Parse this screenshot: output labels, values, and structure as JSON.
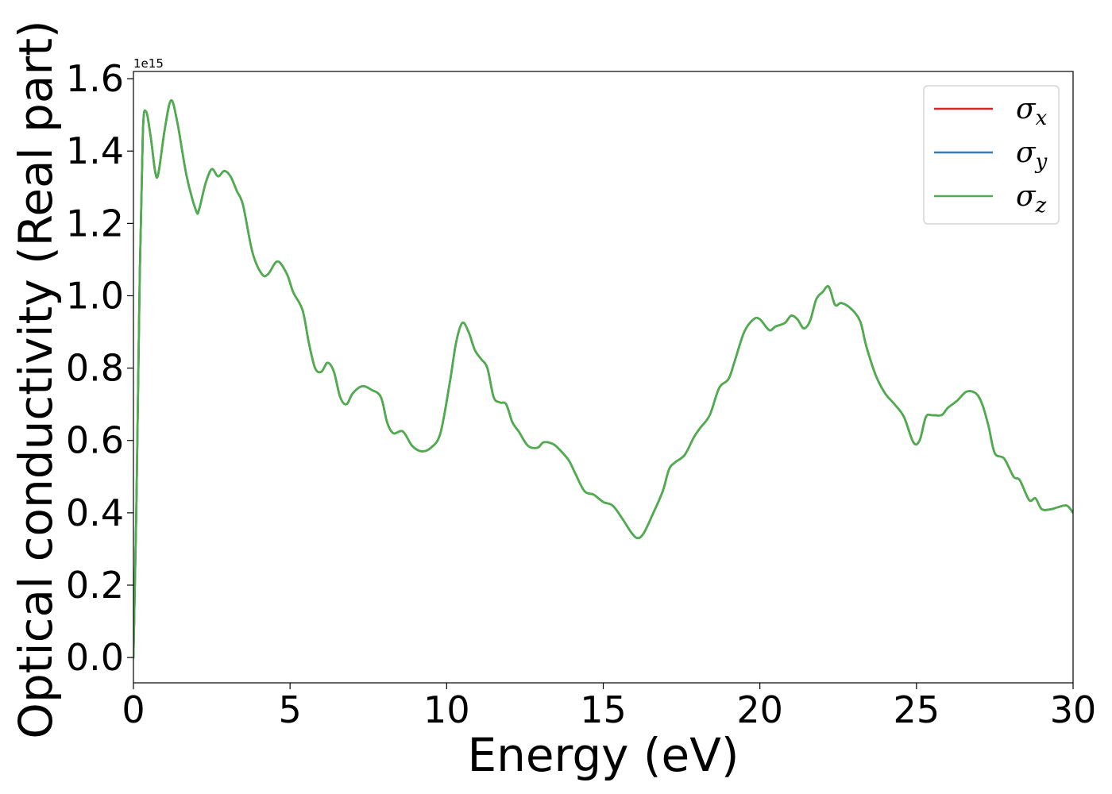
{
  "chart_data": {
    "type": "line",
    "xlabel": "Energy (eV)",
    "ylabel": "Optical conductivity (Real part)",
    "y_offset_label": "1e15",
    "xlim": [
      0,
      30
    ],
    "ylim": [
      -0.07,
      1.62
    ],
    "xticks": [
      0,
      5,
      10,
      15,
      20,
      25,
      30
    ],
    "xtick_labels": [
      "0",
      "5",
      "10",
      "15",
      "20",
      "25",
      "30"
    ],
    "yticks": [
      0.0,
      0.2,
      0.4,
      0.6,
      0.8,
      1.0,
      1.2,
      1.4,
      1.6
    ],
    "ytick_labels": [
      "0.0",
      "0.2",
      "0.4",
      "0.6",
      "0.8",
      "1.0",
      "1.2",
      "1.4",
      "1.6"
    ],
    "grid": false,
    "legend_position": "top-right",
    "x": [
      0,
      0.1,
      0.2,
      0.3,
      0.4,
      0.55,
      0.7,
      0.8,
      1.0,
      1.2,
      1.4,
      1.7,
      2.0,
      2.1,
      2.3,
      2.5,
      2.7,
      2.9,
      3.1,
      3.3,
      3.5,
      3.8,
      4.1,
      4.3,
      4.6,
      4.9,
      5.1,
      5.4,
      5.6,
      5.8,
      6.0,
      6.2,
      6.4,
      6.6,
      6.8,
      7.0,
      7.3,
      7.6,
      7.9,
      8.1,
      8.3,
      8.6,
      8.9,
      9.2,
      9.5,
      9.8,
      10.1,
      10.3,
      10.5,
      10.7,
      10.9,
      11.1,
      11.3,
      11.5,
      11.7,
      11.9,
      12.1,
      12.3,
      12.6,
      12.9,
      13.1,
      13.4,
      13.6,
      13.9,
      14.1,
      14.4,
      14.7,
      15.0,
      15.3,
      15.6,
      15.9,
      16.1,
      16.3,
      16.6,
      16.9,
      17.1,
      17.3,
      17.6,
      17.9,
      18.1,
      18.4,
      18.7,
      19.0,
      19.2,
      19.5,
      19.8,
      20.0,
      20.3,
      20.5,
      20.8,
      21.0,
      21.2,
      21.4,
      21.6,
      21.8,
      22.0,
      22.2,
      22.4,
      22.6,
      22.9,
      23.2,
      23.4,
      23.7,
      24.0,
      24.3,
      24.6,
      24.9,
      25.1,
      25.3,
      25.5,
      25.8,
      26.0,
      26.3,
      26.6,
      26.9,
      27.1,
      27.3,
      27.5,
      27.8,
      28.1,
      28.3,
      28.6,
      28.8,
      29.0,
      29.3,
      29.5,
      29.8,
      30.0
    ],
    "series": [
      {
        "name": "σx",
        "symbol": "σ",
        "subscript": "x",
        "color": "#d62728",
        "values": [
          0.0,
          0.45,
          1.05,
          1.45,
          1.51,
          1.44,
          1.34,
          1.34,
          1.46,
          1.54,
          1.48,
          1.33,
          1.235,
          1.24,
          1.31,
          1.35,
          1.33,
          1.345,
          1.33,
          1.29,
          1.25,
          1.12,
          1.06,
          1.06,
          1.095,
          1.06,
          1.01,
          0.96,
          0.87,
          0.8,
          0.79,
          0.815,
          0.79,
          0.72,
          0.7,
          0.73,
          0.75,
          0.74,
          0.72,
          0.65,
          0.62,
          0.625,
          0.585,
          0.57,
          0.58,
          0.62,
          0.76,
          0.87,
          0.925,
          0.9,
          0.85,
          0.825,
          0.8,
          0.72,
          0.705,
          0.7,
          0.65,
          0.625,
          0.585,
          0.58,
          0.595,
          0.59,
          0.575,
          0.545,
          0.51,
          0.46,
          0.45,
          0.43,
          0.42,
          0.385,
          0.345,
          0.33,
          0.345,
          0.4,
          0.46,
          0.52,
          0.54,
          0.56,
          0.61,
          0.635,
          0.67,
          0.745,
          0.77,
          0.82,
          0.9,
          0.935,
          0.935,
          0.905,
          0.915,
          0.925,
          0.945,
          0.935,
          0.91,
          0.93,
          0.99,
          1.01,
          1.025,
          0.975,
          0.98,
          0.965,
          0.93,
          0.86,
          0.78,
          0.73,
          0.7,
          0.665,
          0.595,
          0.6,
          0.665,
          0.67,
          0.67,
          0.69,
          0.71,
          0.735,
          0.73,
          0.7,
          0.64,
          0.565,
          0.55,
          0.5,
          0.49,
          0.435,
          0.44,
          0.41,
          0.41,
          0.415,
          0.42,
          0.4
        ]
      },
      {
        "name": "σy",
        "symbol": "σ",
        "subscript": "y",
        "color": "#377eb8",
        "values": [
          0.0,
          0.45,
          1.05,
          1.45,
          1.51,
          1.44,
          1.34,
          1.34,
          1.46,
          1.54,
          1.48,
          1.33,
          1.235,
          1.24,
          1.31,
          1.35,
          1.33,
          1.345,
          1.33,
          1.29,
          1.25,
          1.12,
          1.06,
          1.06,
          1.095,
          1.06,
          1.01,
          0.96,
          0.87,
          0.8,
          0.79,
          0.815,
          0.79,
          0.72,
          0.7,
          0.73,
          0.75,
          0.74,
          0.72,
          0.65,
          0.62,
          0.625,
          0.585,
          0.57,
          0.58,
          0.62,
          0.76,
          0.87,
          0.925,
          0.9,
          0.85,
          0.825,
          0.8,
          0.72,
          0.705,
          0.7,
          0.65,
          0.625,
          0.585,
          0.58,
          0.595,
          0.59,
          0.575,
          0.545,
          0.51,
          0.46,
          0.45,
          0.43,
          0.42,
          0.385,
          0.345,
          0.33,
          0.345,
          0.4,
          0.46,
          0.52,
          0.54,
          0.56,
          0.61,
          0.635,
          0.67,
          0.745,
          0.77,
          0.82,
          0.9,
          0.935,
          0.935,
          0.905,
          0.915,
          0.925,
          0.945,
          0.935,
          0.91,
          0.93,
          0.99,
          1.01,
          1.025,
          0.975,
          0.98,
          0.965,
          0.93,
          0.86,
          0.78,
          0.73,
          0.7,
          0.665,
          0.595,
          0.6,
          0.665,
          0.67,
          0.67,
          0.69,
          0.71,
          0.735,
          0.73,
          0.7,
          0.64,
          0.565,
          0.55,
          0.5,
          0.49,
          0.435,
          0.44,
          0.41,
          0.41,
          0.415,
          0.42,
          0.4
        ]
      },
      {
        "name": "σz",
        "symbol": "σ",
        "subscript": "z",
        "color": "#4daf4a",
        "values": [
          0.0,
          0.45,
          1.05,
          1.45,
          1.51,
          1.44,
          1.34,
          1.34,
          1.46,
          1.54,
          1.48,
          1.33,
          1.235,
          1.24,
          1.31,
          1.35,
          1.33,
          1.345,
          1.33,
          1.29,
          1.25,
          1.12,
          1.06,
          1.06,
          1.095,
          1.06,
          1.01,
          0.96,
          0.87,
          0.8,
          0.79,
          0.815,
          0.79,
          0.72,
          0.7,
          0.73,
          0.75,
          0.74,
          0.72,
          0.65,
          0.62,
          0.625,
          0.585,
          0.57,
          0.58,
          0.62,
          0.76,
          0.87,
          0.925,
          0.9,
          0.85,
          0.825,
          0.8,
          0.72,
          0.705,
          0.7,
          0.65,
          0.625,
          0.585,
          0.58,
          0.595,
          0.59,
          0.575,
          0.545,
          0.51,
          0.46,
          0.45,
          0.43,
          0.42,
          0.385,
          0.345,
          0.33,
          0.345,
          0.4,
          0.46,
          0.52,
          0.54,
          0.56,
          0.61,
          0.635,
          0.67,
          0.745,
          0.77,
          0.82,
          0.9,
          0.935,
          0.935,
          0.905,
          0.915,
          0.925,
          0.945,
          0.935,
          0.91,
          0.93,
          0.99,
          1.01,
          1.025,
          0.975,
          0.98,
          0.965,
          0.93,
          0.86,
          0.78,
          0.73,
          0.7,
          0.665,
          0.595,
          0.6,
          0.665,
          0.67,
          0.67,
          0.69,
          0.71,
          0.735,
          0.73,
          0.7,
          0.64,
          0.565,
          0.55,
          0.5,
          0.49,
          0.435,
          0.44,
          0.41,
          0.41,
          0.415,
          0.42,
          0.4
        ]
      }
    ]
  }
}
